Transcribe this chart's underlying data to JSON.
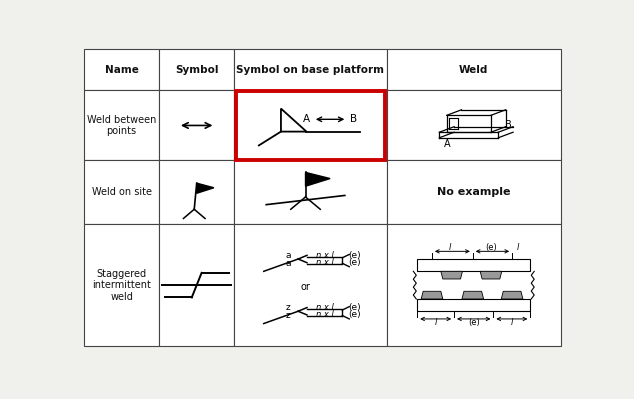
{
  "bg_color": "#f0f0ec",
  "text_color": "#111111",
  "red_box_color": "#cc0000",
  "headers": [
    "Name",
    "Symbol",
    "Symbol on base platform",
    "Weld"
  ],
  "col_props": [
    0.155,
    0.155,
    0.315,
    0.36
  ],
  "row_props": [
    0.135,
    0.23,
    0.21,
    0.4
  ],
  "row_labels": [
    "Weld between\npoints",
    "Weld on site",
    "Staggered\nintermittent\nweld"
  ]
}
